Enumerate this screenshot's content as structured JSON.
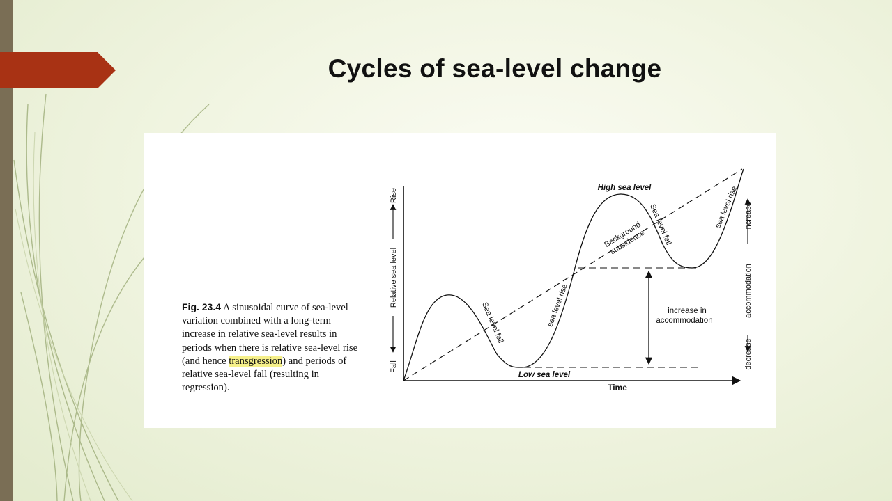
{
  "slide": {
    "title": "Cycles of sea-level change",
    "accent_color": "#a83214",
    "sidebar_color": "#7a6e55"
  },
  "caption": {
    "label": "Fig. 23.4",
    "text_before": " A sinusoidal curve of sea-level variation combined with a long-term increase in relative sea-level results in periods when there is relative sea-level rise (and hence ",
    "highlight": "transgression",
    "text_after": ") and periods of relative sea-level fall (resulting in regression).",
    "highlight_color": "#f6f08a"
  },
  "diagram": {
    "x_axis_label": "Time",
    "y_axis_fall": "Fall",
    "y_axis_label": "Relative sea level",
    "y_axis_rise": "Rise",
    "right_axis_decrease": "decrease",
    "right_axis_label": "accommodation",
    "right_axis_increase": "increase",
    "high_sea_level": "High sea level",
    "low_sea_level": "Low sea level",
    "background_line1": "Background",
    "background_line2": "subsidence",
    "phase_labels": [
      "Sea level fall",
      "sea level rise",
      "Sea level fall",
      "sea level rise"
    ],
    "accommodation_line1": "increase in",
    "accommodation_line2": "accommodation"
  }
}
